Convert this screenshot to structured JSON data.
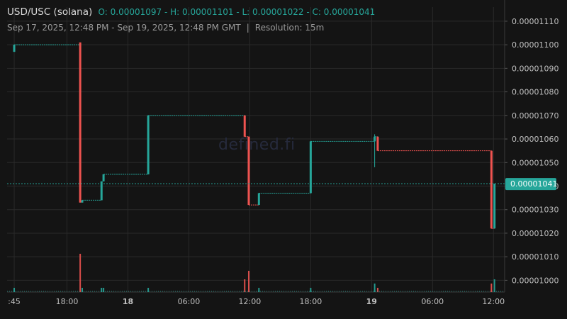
{
  "header": {
    "symbol": "USD/USC (solana)",
    "ohlc": "O: 0.00001097 - H: 0.00001101 - L: 0.00001022 - C: 0.00001041",
    "range": "Sep 17, 2025, 12:48 PM - Sep 19, 2025, 12:48 PM GMT",
    "separator": "|",
    "resolution": "Resolution: 15m"
  },
  "watermark": "defined.fi",
  "colors": {
    "background": "#141414",
    "up": "#26a69a",
    "down": "#ef5350",
    "grid": "#2a2a2a",
    "text": "#d9d9d9",
    "axis_text": "#bfbfbf",
    "price_label_bg": "#26a69a"
  },
  "chart_data": {
    "type": "candlestick",
    "title": "USD/USC (solana)",
    "xlabel": "",
    "ylabel": "",
    "ylim": [
      9.95e-06,
      1.116e-05
    ],
    "y_ticks": [
      "0.00001110",
      "0.00001100",
      "0.00001090",
      "0.00001080",
      "0.00001070",
      "0.00001060",
      "0.00001050",
      "0.00001040",
      "0.00001030",
      "0.00001020",
      "0.00001010",
      "0.00001000"
    ],
    "y_tick_values": [
      1.11e-05,
      1.1e-05,
      1.09e-05,
      1.08e-05,
      1.07e-05,
      1.06e-05,
      1.05e-05,
      1.04e-05,
      1.03e-05,
      1.02e-05,
      1.01e-05,
      1e-05
    ],
    "x_ticks": [
      {
        "label": ":45",
        "t": 0.0,
        "bold": false
      },
      {
        "label": "18:00",
        "t": 5.2,
        "bold": false
      },
      {
        "label": "18",
        "t": 11.2,
        "bold": true
      },
      {
        "label": "06:00",
        "t": 17.2,
        "bold": false
      },
      {
        "label": "12:00",
        "t": 23.2,
        "bold": false
      },
      {
        "label": "18:00",
        "t": 29.2,
        "bold": false
      },
      {
        "label": "19",
        "t": 35.2,
        "bold": true
      },
      {
        "label": "06:00",
        "t": 41.2,
        "bold": false
      },
      {
        "label": "12:00",
        "t": 47.2,
        "bold": false
      }
    ],
    "x_range_hours": [
      -0.7,
      48.3
    ],
    "last_price": 1.041e-05,
    "last_price_label": "0.00001041",
    "candles": [
      {
        "t": 0.0,
        "o": 1.097e-05,
        "h": 1.1e-05,
        "l": 1.097e-05,
        "c": 1.1e-05,
        "v": 1
      },
      {
        "t": 6.5,
        "o": 1.101e-05,
        "h": 1.101e-05,
        "l": 1.033e-05,
        "c": 1.033e-05,
        "v": 9
      },
      {
        "t": 6.7,
        "o": 1.033e-05,
        "h": 1.034e-05,
        "l": 1.033e-05,
        "c": 1.034e-05,
        "v": 1
      },
      {
        "t": 8.6,
        "o": 1.034e-05,
        "h": 1.042e-05,
        "l": 1.034e-05,
        "c": 1.042e-05,
        "v": 1
      },
      {
        "t": 8.8,
        "o": 1.042e-05,
        "h": 1.045e-05,
        "l": 1.042e-05,
        "c": 1.045e-05,
        "v": 1
      },
      {
        "t": 13.2,
        "o": 1.045e-05,
        "h": 1.07e-05,
        "l": 1.045e-05,
        "c": 1.07e-05,
        "v": 1
      },
      {
        "t": 22.7,
        "o": 1.07e-05,
        "h": 1.07e-05,
        "l": 1.061e-05,
        "c": 1.061e-05,
        "v": 3
      },
      {
        "t": 23.1,
        "o": 1.061e-05,
        "h": 1.061e-05,
        "l": 1.032e-05,
        "c": 1.032e-05,
        "v": 5
      },
      {
        "t": 24.1,
        "o": 1.032e-05,
        "h": 1.037e-05,
        "l": 1.032e-05,
        "c": 1.037e-05,
        "v": 1
      },
      {
        "t": 29.2,
        "o": 1.037e-05,
        "h": 1.059e-05,
        "l": 1.037e-05,
        "c": 1.059e-05,
        "v": 1
      },
      {
        "t": 35.5,
        "o": 1.059e-05,
        "h": 1.062e-05,
        "l": 1.048e-05,
        "c": 1.061e-05,
        "v": 2
      },
      {
        "t": 35.8,
        "o": 1.061e-05,
        "h": 1.061e-05,
        "l": 1.055e-05,
        "c": 1.055e-05,
        "v": 1
      },
      {
        "t": 47.0,
        "o": 1.055e-05,
        "h": 1.055e-05,
        "l": 1.022e-05,
        "c": 1.022e-05,
        "v": 2
      },
      {
        "t": 47.3,
        "o": 1.022e-05,
        "h": 1.041e-05,
        "l": 1.022e-05,
        "c": 1.041e-05,
        "v": 3
      }
    ]
  }
}
